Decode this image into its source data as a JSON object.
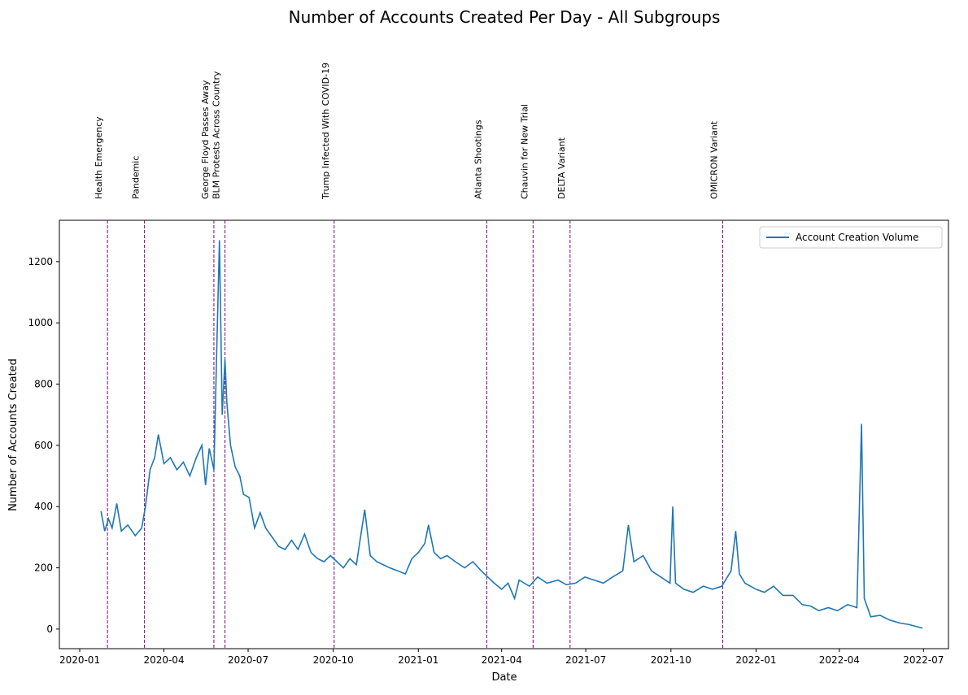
{
  "chart_data": {
    "type": "line",
    "title": "Number of Accounts Created Per Day - All Subgroups",
    "x_label": "Date",
    "y_label": "Number of Accounts Created",
    "legend": "upper right",
    "series": [
      {
        "name": "Account Creation Volume",
        "color": "#1f77b4",
        "x": [
          "2020-01-24",
          "2020-01-28",
          "2020-02-01",
          "2020-02-05",
          "2020-02-10",
          "2020-02-15",
          "2020-02-22",
          "2020-03-01",
          "2020-03-08",
          "2020-03-12",
          "2020-03-17",
          "2020-03-22",
          "2020-03-26",
          "2020-04-01",
          "2020-04-08",
          "2020-04-15",
          "2020-04-22",
          "2020-04-29",
          "2020-05-06",
          "2020-05-12",
          "2020-05-16",
          "2020-05-20",
          "2020-05-25",
          "2020-05-28",
          "2020-05-31",
          "2020-06-03",
          "2020-06-06",
          "2020-06-08",
          "2020-06-12",
          "2020-06-17",
          "2020-06-22",
          "2020-06-26",
          "2020-07-02",
          "2020-07-08",
          "2020-07-14",
          "2020-07-20",
          "2020-07-27",
          "2020-08-03",
          "2020-08-10",
          "2020-08-17",
          "2020-08-24",
          "2020-08-31",
          "2020-09-07",
          "2020-09-14",
          "2020-09-21",
          "2020-09-28",
          "2020-10-05",
          "2020-10-12",
          "2020-10-19",
          "2020-10-26",
          "2020-11-04",
          "2020-11-10",
          "2020-11-17",
          "2020-11-24",
          "2020-12-01",
          "2020-12-10",
          "2020-12-18",
          "2020-12-25",
          "2021-01-01",
          "2021-01-08",
          "2021-01-12",
          "2021-01-18",
          "2021-01-25",
          "2021-02-01",
          "2021-02-10",
          "2021-02-20",
          "2021-03-01",
          "2021-03-10",
          "2021-03-17",
          "2021-03-24",
          "2021-04-01",
          "2021-04-08",
          "2021-04-15",
          "2021-04-20",
          "2021-05-01",
          "2021-05-10",
          "2021-05-20",
          "2021-06-01",
          "2021-06-10",
          "2021-06-20",
          "2021-06-30",
          "2021-07-10",
          "2021-07-20",
          "2021-07-30",
          "2021-08-10",
          "2021-08-16",
          "2021-08-22",
          "2021-09-01",
          "2021-09-10",
          "2021-09-20",
          "2021-09-30",
          "2021-10-03",
          "2021-10-06",
          "2021-10-15",
          "2021-10-25",
          "2021-11-05",
          "2021-11-15",
          "2021-11-25",
          "2021-12-05",
          "2021-12-10",
          "2021-12-14",
          "2021-12-20",
          "2022-01-01",
          "2022-01-10",
          "2022-01-20",
          "2022-01-30",
          "2022-02-10",
          "2022-02-20",
          "2022-03-01",
          "2022-03-10",
          "2022-03-20",
          "2022-03-30",
          "2022-04-10",
          "2022-04-20",
          "2022-04-25",
          "2022-04-28",
          "2022-05-05",
          "2022-05-15",
          "2022-05-25",
          "2022-06-05",
          "2022-06-15",
          "2022-06-30"
        ],
        "values": [
          385,
          320,
          360,
          330,
          410,
          320,
          340,
          305,
          330,
          400,
          520,
          560,
          635,
          540,
          560,
          520,
          545,
          500,
          560,
          600,
          470,
          590,
          520,
          900,
          1270,
          700,
          880,
          740,
          600,
          530,
          500,
          440,
          430,
          330,
          380,
          330,
          300,
          270,
          260,
          290,
          260,
          310,
          250,
          230,
          220,
          240,
          220,
          200,
          230,
          210,
          390,
          240,
          220,
          210,
          200,
          190,
          180,
          230,
          250,
          280,
          340,
          250,
          230,
          240,
          220,
          200,
          220,
          190,
          170,
          150,
          130,
          150,
          100,
          160,
          140,
          170,
          150,
          160,
          145,
          150,
          170,
          160,
          150,
          170,
          190,
          340,
          220,
          240,
          190,
          170,
          150,
          400,
          150,
          130,
          120,
          140,
          130,
          140,
          190,
          320,
          180,
          150,
          130,
          120,
          140,
          110,
          110,
          80,
          75,
          60,
          70,
          60,
          80,
          70,
          670,
          100,
          40,
          45,
          30,
          20,
          15,
          3
        ]
      }
    ],
    "events": [
      {
        "date": "2020-01-31",
        "label": "Health Emergency"
      },
      {
        "date": "2020-03-11",
        "label": "Pandemic"
      },
      {
        "date": "2020-05-25",
        "label": "George Floyd Passes Away"
      },
      {
        "date": "2020-06-06",
        "label": "BLM Protests Across Country"
      },
      {
        "date": "2020-10-02",
        "label": "Trump Infected With COVID-19"
      },
      {
        "date": "2021-03-16",
        "label": "Atlanta Shootings"
      },
      {
        "date": "2021-05-05",
        "label": "Chauvin for New Trial"
      },
      {
        "date": "2021-06-14",
        "label": "DELTA Variant"
      },
      {
        "date": "2021-11-26",
        "label": "OMICRON Variant"
      }
    ],
    "event_color": "#800080",
    "xlim": [
      "2019-12-10",
      "2022-07-28"
    ],
    "xticks": [
      "2020-01",
      "2020-04",
      "2020-07",
      "2020-10",
      "2021-01",
      "2021-04",
      "2021-07",
      "2021-10",
      "2022-01",
      "2022-04",
      "2022-07"
    ],
    "ylim": [
      -64,
      1335
    ],
    "yticks": [
      0,
      200,
      400,
      600,
      800,
      1000,
      1200
    ]
  }
}
